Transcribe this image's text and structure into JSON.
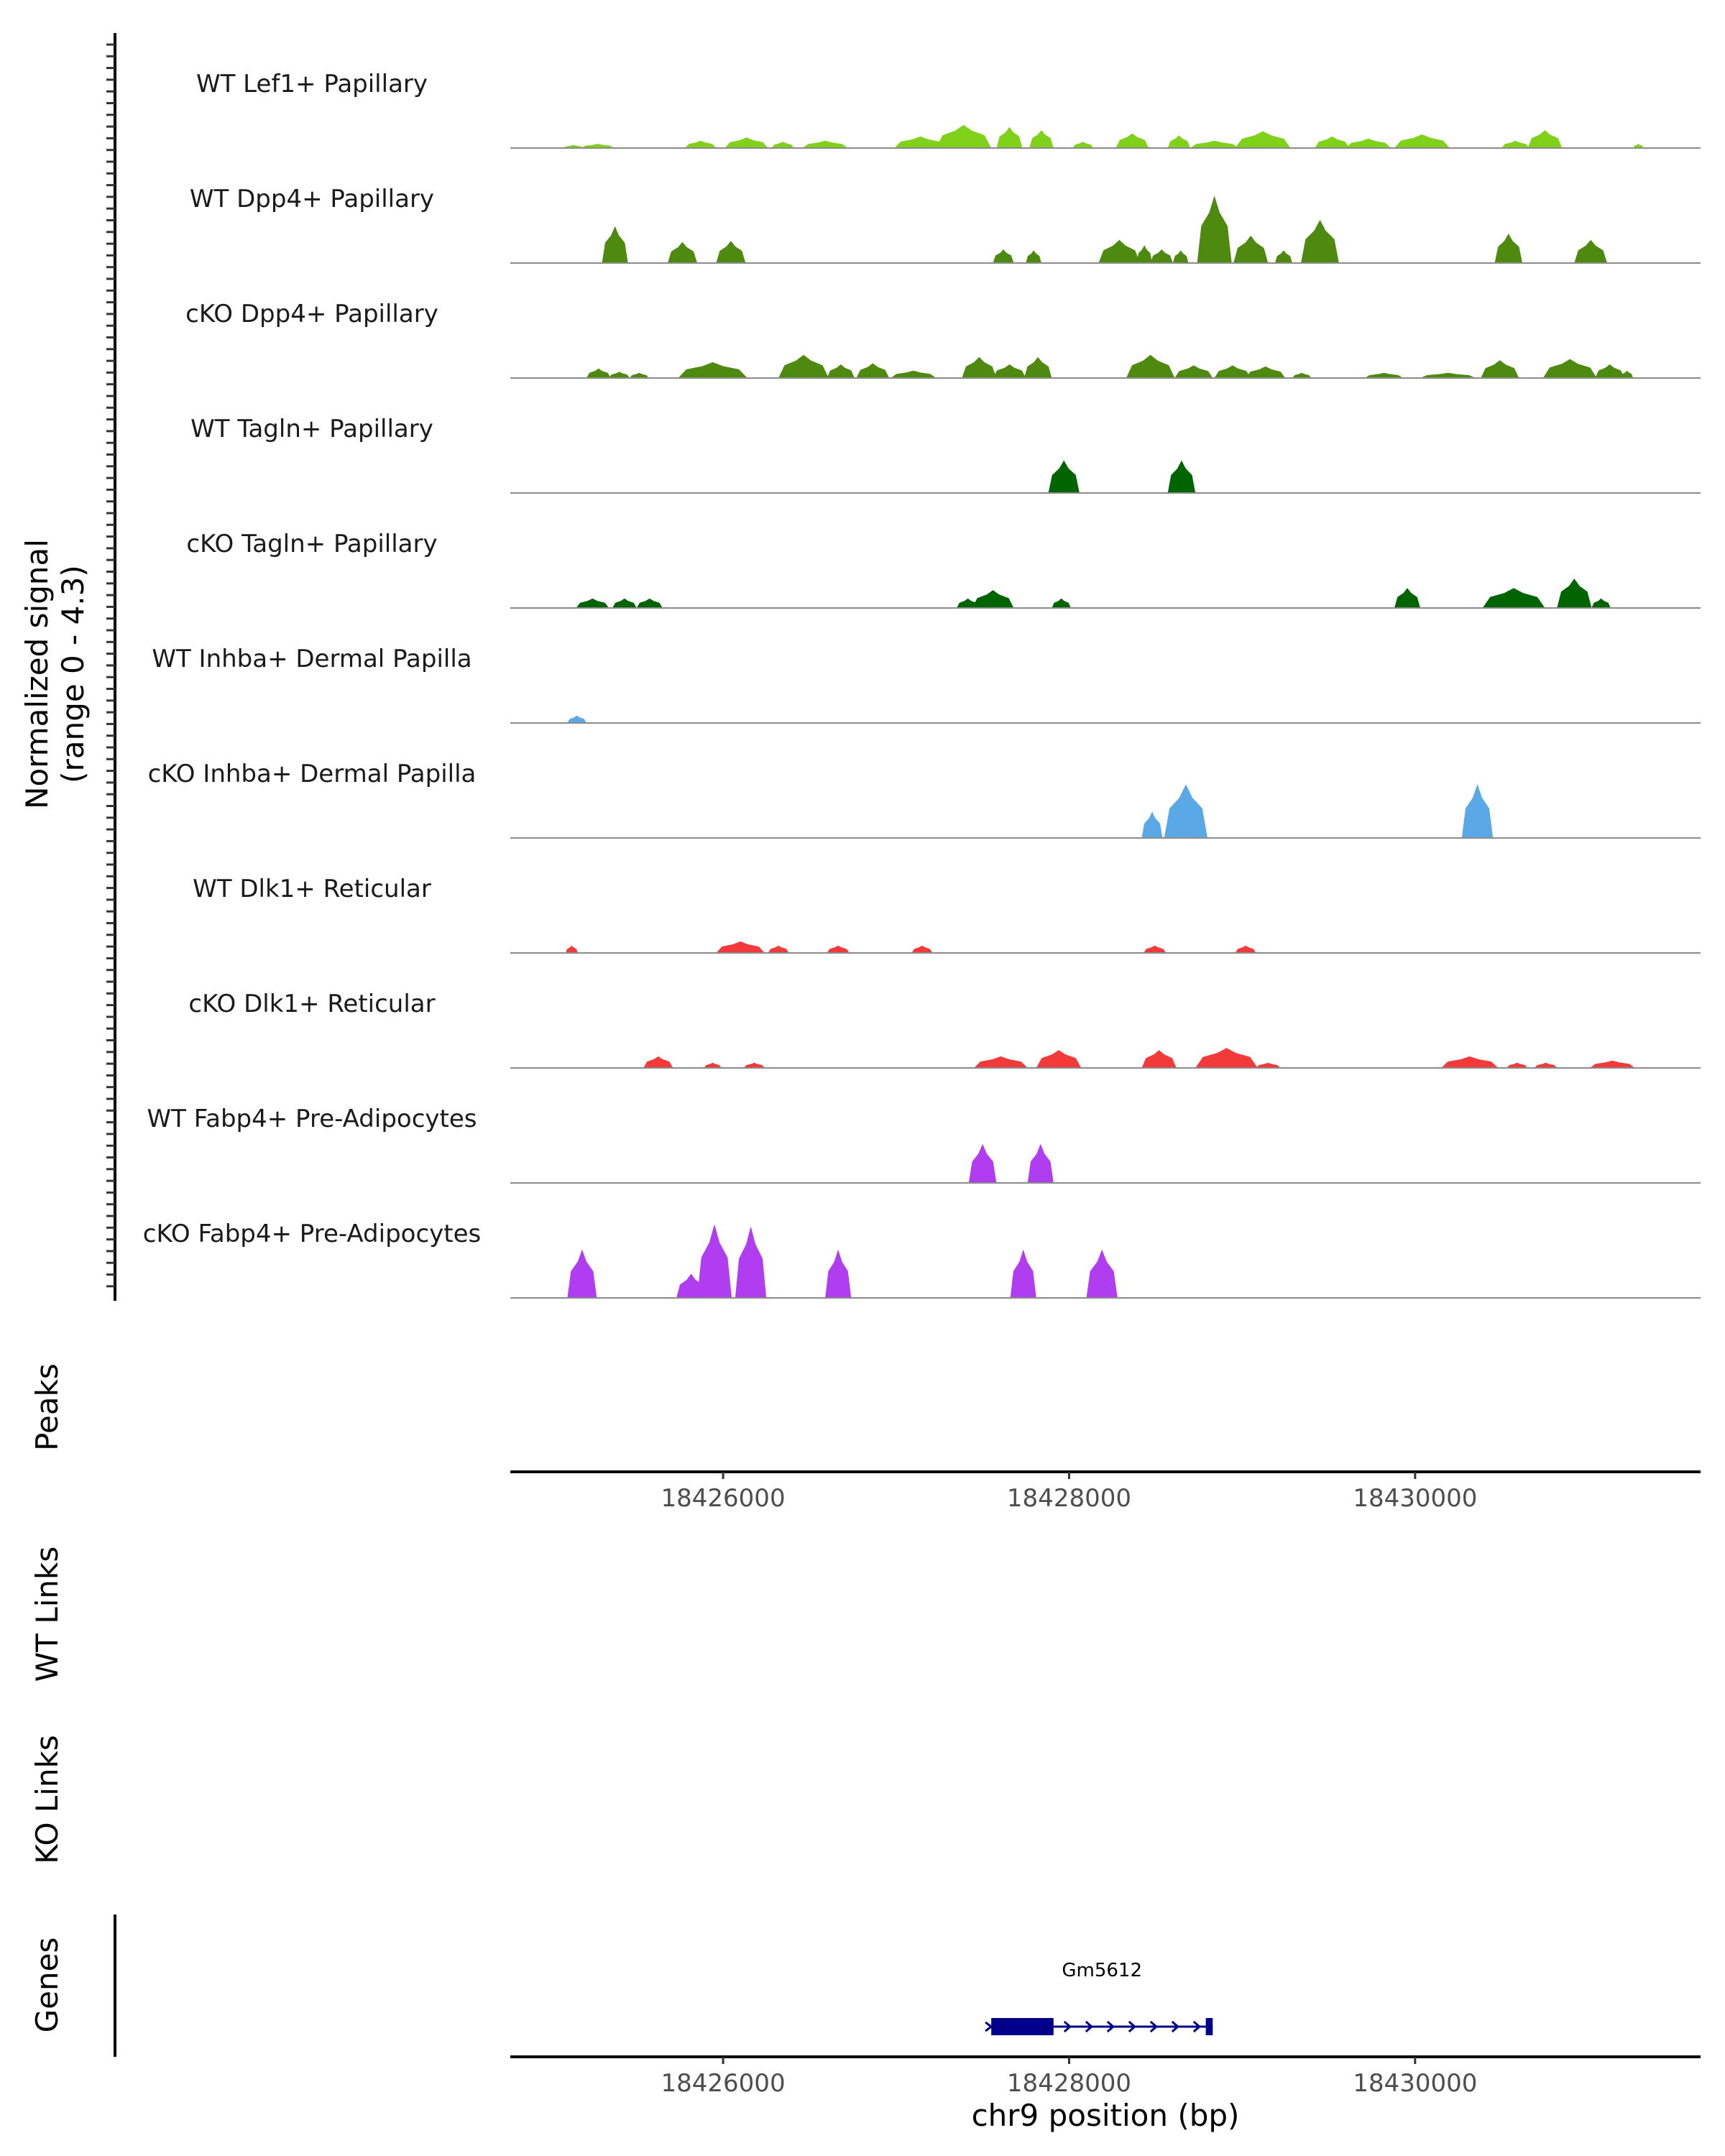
{
  "chart_data": {
    "type": "area",
    "title": "",
    "y_axis_title": "Normalized signal\n(range 0 - 4.3)",
    "y_axis_title_lines": [
      "Normalized signal",
      "(range 0 - 4.3)"
    ],
    "y_range": [
      0,
      4.3
    ],
    "x_axis_title": "chr9 position (bp)",
    "x_range": [
      18424770,
      18431650
    ],
    "x_ticks": [
      18426000,
      18428000,
      18430000
    ],
    "x_tick_labels": [
      "18426000",
      "18428000",
      "18430000"
    ],
    "panel_labels": {
      "peaks": "Peaks",
      "wt_links": "WT Links",
      "ko_links": "KO Links",
      "genes": "Genes"
    },
    "genes": [
      {
        "name": "Gm5612",
        "start": 18427550,
        "end": 18428830,
        "strand": "+",
        "exons": [
          [
            18427550,
            18427910
          ],
          [
            18428790,
            18428830
          ]
        ],
        "color": "#00008b"
      }
    ],
    "tracks": [
      {
        "name": "WT Lef1+ Papillary",
        "color": "#7fd11a",
        "peaks": [
          [
            18425080,
            18425190,
            0.15
          ],
          [
            18425180,
            18425370,
            0.2
          ],
          [
            18425780,
            18425960,
            0.35
          ],
          [
            18426010,
            18426260,
            0.5
          ],
          [
            18426280,
            18426410,
            0.3
          ],
          [
            18426460,
            18426720,
            0.35
          ],
          [
            18426990,
            18427290,
            0.55
          ],
          [
            18427230,
            18427550,
            1.1
          ],
          [
            18427580,
            18427730,
            1.0
          ],
          [
            18427770,
            18427910,
            0.85
          ],
          [
            18428020,
            18428140,
            0.3
          ],
          [
            18428270,
            18428460,
            0.7
          ],
          [
            18428570,
            18428700,
            0.6
          ],
          [
            18428700,
            18428980,
            0.35
          ],
          [
            18428960,
            18429280,
            0.8
          ],
          [
            18429420,
            18429620,
            0.55
          ],
          [
            18429600,
            18429860,
            0.45
          ],
          [
            18429880,
            18430200,
            0.65
          ],
          [
            18430500,
            18430660,
            0.35
          ],
          [
            18430650,
            18430850,
            0.85
          ],
          [
            18431260,
            18431320,
            0.2
          ]
        ]
      },
      {
        "name": "WT Dpp4+ Papillary",
        "color": "#4f8a10",
        "peaks": [
          [
            18425300,
            18425450,
            1.75
          ],
          [
            18425680,
            18425850,
            1.0
          ],
          [
            18425960,
            18426130,
            1.05
          ],
          [
            18427560,
            18427680,
            0.65
          ],
          [
            18427750,
            18427840,
            0.6
          ],
          [
            18428170,
            18428410,
            1.1
          ],
          [
            18428390,
            18428480,
            0.85
          ],
          [
            18428470,
            18428600,
            0.65
          ],
          [
            18428600,
            18428690,
            0.6
          ],
          [
            18428740,
            18428940,
            3.2
          ],
          [
            18428950,
            18429150,
            1.3
          ],
          [
            18429190,
            18429290,
            0.6
          ],
          [
            18429340,
            18429560,
            2.05
          ],
          [
            18430460,
            18430620,
            1.4
          ],
          [
            18430920,
            18431110,
            1.1
          ]
        ]
      },
      {
        "name": "cKO Dpp4+ Papillary",
        "color": "#4f8a10",
        "peaks": [
          [
            18425210,
            18425350,
            0.45
          ],
          [
            18425340,
            18425460,
            0.3
          ],
          [
            18425460,
            18425570,
            0.25
          ],
          [
            18425740,
            18426140,
            0.75
          ],
          [
            18426320,
            18426610,
            1.1
          ],
          [
            18426600,
            18426760,
            0.65
          ],
          [
            18426770,
            18426960,
            0.7
          ],
          [
            18426970,
            18427230,
            0.35
          ],
          [
            18427380,
            18427580,
            1.0
          ],
          [
            18427560,
            18427750,
            0.65
          ],
          [
            18427740,
            18427900,
            1.0
          ],
          [
            18428330,
            18428610,
            1.1
          ],
          [
            18428610,
            18428830,
            0.6
          ],
          [
            18428840,
            18429050,
            0.6
          ],
          [
            18429020,
            18429250,
            0.55
          ],
          [
            18429290,
            18429400,
            0.25
          ],
          [
            18429710,
            18429930,
            0.25
          ],
          [
            18430030,
            18430350,
            0.25
          ],
          [
            18430380,
            18430600,
            0.85
          ],
          [
            18430740,
            18431050,
            0.9
          ],
          [
            18431040,
            18431210,
            0.65
          ],
          [
            18431190,
            18431260,
            0.35
          ]
        ]
      },
      {
        "name": "WT Tagln+ Papillary",
        "color": "#006400",
        "peaks": [
          [
            18427880,
            18428060,
            1.55
          ],
          [
            18428570,
            18428730,
            1.55
          ]
        ]
      },
      {
        "name": "cKO Tagln+ Papillary",
        "color": "#006400",
        "peaks": [
          [
            18425150,
            18425340,
            0.45
          ],
          [
            18425360,
            18425500,
            0.45
          ],
          [
            18425500,
            18425650,
            0.45
          ],
          [
            18427350,
            18427480,
            0.45
          ],
          [
            18427440,
            18427680,
            0.85
          ],
          [
            18427900,
            18428010,
            0.45
          ],
          [
            18429880,
            18430030,
            0.95
          ],
          [
            18430390,
            18430750,
            0.95
          ],
          [
            18430820,
            18431020,
            1.4
          ],
          [
            18431020,
            18431130,
            0.45
          ]
        ]
      },
      {
        "name": "WT Inhba+ Dermal Papilla",
        "color": "#5aa9e6",
        "peaks": [
          [
            18425100,
            18425210,
            0.35
          ]
        ]
      },
      {
        "name": "cKO Inhba+ Dermal Papilla",
        "color": "#5aa9e6",
        "peaks": [
          [
            18428420,
            18428540,
            1.25
          ],
          [
            18428550,
            18428800,
            2.55
          ],
          [
            18430270,
            18430450,
            2.55
          ]
        ]
      },
      {
        "name": "WT Dlk1+ Reticular",
        "color": "#f23a3a",
        "peaks": [
          [
            18425090,
            18425160,
            0.35
          ],
          [
            18425960,
            18426240,
            0.55
          ],
          [
            18426260,
            18426380,
            0.35
          ],
          [
            18426600,
            18426730,
            0.35
          ],
          [
            18427090,
            18427210,
            0.35
          ],
          [
            18428430,
            18428560,
            0.35
          ],
          [
            18428960,
            18429080,
            0.35
          ]
        ]
      },
      {
        "name": "cKO Dlk1+ Reticular",
        "color": "#f23a3a",
        "peaks": [
          [
            18425540,
            18425710,
            0.55
          ],
          [
            18425890,
            18425990,
            0.25
          ],
          [
            18426120,
            18426240,
            0.25
          ],
          [
            18427450,
            18427760,
            0.55
          ],
          [
            18427810,
            18428070,
            0.85
          ],
          [
            18428420,
            18428620,
            0.85
          ],
          [
            18428730,
            18429090,
            0.95
          ],
          [
            18429080,
            18429220,
            0.25
          ],
          [
            18430150,
            18430480,
            0.55
          ],
          [
            18430530,
            18430650,
            0.25
          ],
          [
            18430690,
            18430820,
            0.25
          ],
          [
            18431010,
            18431270,
            0.35
          ]
        ]
      },
      {
        "name": "WT Fabp4+ Pre-Adipocytes",
        "color": "#b03df0",
        "peaks": [
          [
            18427420,
            18427580,
            1.85
          ],
          [
            18427760,
            18427910,
            1.85
          ]
        ]
      },
      {
        "name": "cKO Fabp4+ Pre-Adipocytes",
        "color": "#b03df0",
        "peaks": [
          [
            18425100,
            18425270,
            2.3
          ],
          [
            18425730,
            18425900,
            1.15
          ],
          [
            18425850,
            18426050,
            3.5
          ],
          [
            18426070,
            18426250,
            3.4
          ],
          [
            18426590,
            18426740,
            2.3
          ],
          [
            18427660,
            18427810,
            2.3
          ],
          [
            18428100,
            18428280,
            2.3
          ]
        ]
      }
    ]
  }
}
